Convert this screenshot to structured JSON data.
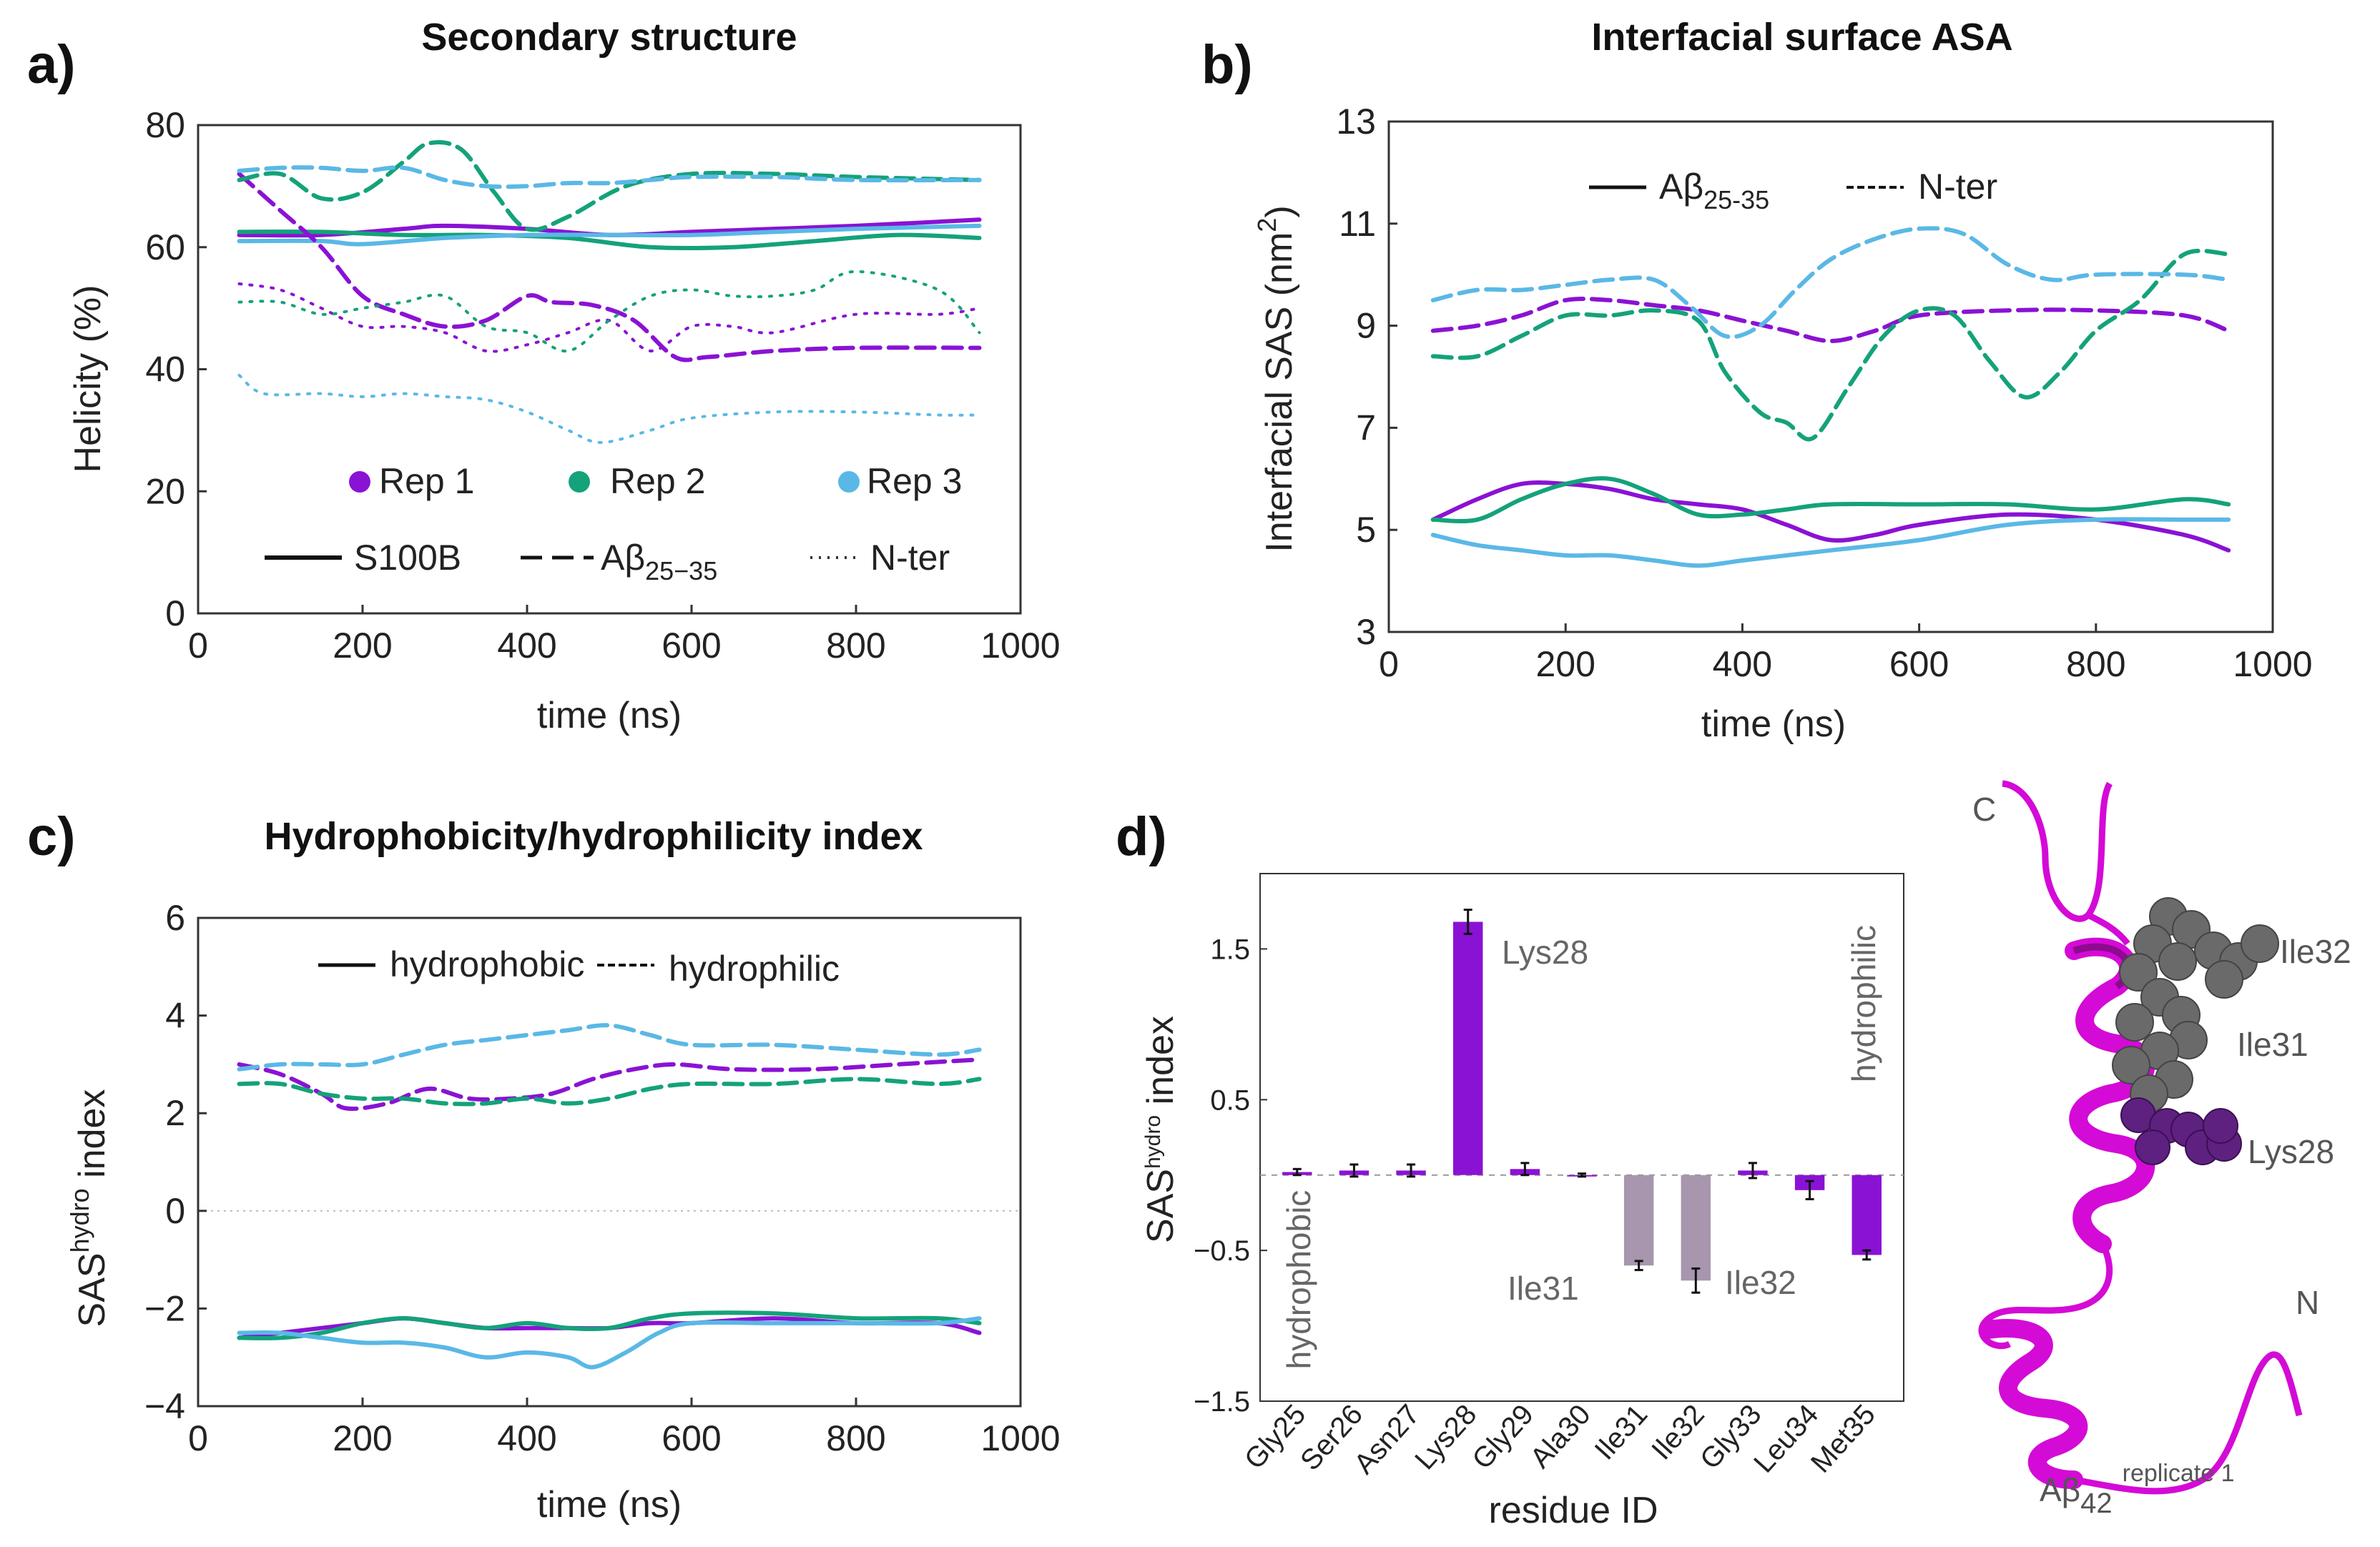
{
  "colors": {
    "rep1": "#8a12d4",
    "rep2": "#14a27a",
    "rep3": "#5ab8e6",
    "grey_bar": "#a796ad",
    "ribbon": "#d40ad6",
    "sphere_grey": "#6a6a6a",
    "sphere_purple": "#5e2180",
    "lys_text": "#8a2fb5"
  },
  "panels": [
    {
      "label": "a)",
      "title": "Secondary structure"
    },
    {
      "label": "b)",
      "title": "Interfacial surface ASA"
    },
    {
      "label": "c)",
      "title": "Hydrophobicity/hydrophilicity index"
    },
    {
      "label": "d)",
      "title": ""
    }
  ],
  "chart_data": [
    {
      "id": "a",
      "type": "line",
      "title": "Secondary structure",
      "xlabel": "time (ns)",
      "ylabel": "Helicity (%)",
      "xlim": [
        0,
        1000
      ],
      "ylim": [
        0,
        80
      ],
      "xticks": [
        0,
        200,
        400,
        600,
        800,
        1000
      ],
      "yticks": [
        0,
        20,
        40,
        60,
        80
      ],
      "legend": {
        "replicates": [
          {
            "name": "Rep 1",
            "color": "rep1"
          },
          {
            "name": "Rep 2",
            "color": "rep2"
          },
          {
            "name": "Rep 3",
            "color": "rep3"
          }
        ],
        "styles": [
          {
            "name": "S100B",
            "style": "solid"
          },
          {
            "name": "Aβ",
            "sub": "25−35",
            "style": "dashed"
          },
          {
            "name": "N-ter",
            "style": "dotted"
          }
        ]
      },
      "series": [
        {
          "name": "Rep 1 S100B",
          "rep": "rep1",
          "style": "solid",
          "x": [
            50,
            150,
            250,
            300,
            400,
            500,
            600,
            700,
            800,
            950
          ],
          "y": [
            62,
            62,
            63,
            63.5,
            63,
            62,
            62.5,
            63,
            63.5,
            64.5
          ]
        },
        {
          "name": "Rep 2 S100B",
          "rep": "rep2",
          "style": "solid",
          "x": [
            50,
            150,
            250,
            350,
            450,
            550,
            650,
            750,
            850,
            950
          ],
          "y": [
            62.5,
            62.5,
            62,
            62,
            61.5,
            60,
            60,
            61,
            62,
            61.5
          ]
        },
        {
          "name": "Rep 3 S100B",
          "rep": "rep3",
          "style": "solid",
          "x": [
            50,
            150,
            200,
            300,
            400,
            500,
            600,
            700,
            800,
            950
          ],
          "y": [
            61,
            61,
            60.5,
            61.5,
            62,
            62,
            62,
            62.5,
            63,
            63.5
          ]
        },
        {
          "name": "Rep 1 Aβ25-35",
          "rep": "rep1",
          "style": "dashed",
          "x": [
            50,
            100,
            150,
            200,
            250,
            300,
            350,
            400,
            430,
            480,
            530,
            580,
            620,
            700,
            800,
            950
          ],
          "y": [
            72,
            66,
            60,
            52,
            49,
            47,
            48,
            52,
            51,
            50.5,
            48,
            42,
            42,
            43,
            43.5,
            43.5
          ]
        },
        {
          "name": "Rep 2 Aβ25-35",
          "rep": "rep2",
          "style": "dashed",
          "x": [
            50,
            100,
            150,
            200,
            250,
            280,
            320,
            360,
            400,
            450,
            520,
            600,
            700,
            800,
            950
          ],
          "y": [
            71,
            72,
            68,
            69,
            74,
            77,
            76,
            69,
            63,
            65,
            70,
            72,
            72,
            71.5,
            71
          ]
        },
        {
          "name": "Rep 3 Aβ25-35",
          "rep": "rep3",
          "style": "dashed",
          "x": [
            50,
            100,
            150,
            200,
            250,
            300,
            350,
            400,
            450,
            500,
            550,
            600,
            700,
            800,
            950
          ],
          "y": [
            72.5,
            73,
            73,
            72.5,
            73,
            71,
            70,
            70,
            70.5,
            70.5,
            71,
            71.5,
            71.5,
            71,
            71
          ]
        },
        {
          "name": "Rep 1 N-ter",
          "rep": "rep1",
          "style": "dotted",
          "x": [
            50,
            100,
            150,
            200,
            250,
            300,
            350,
            400,
            450,
            500,
            550,
            600,
            650,
            700,
            800,
            900,
            950
          ],
          "y": [
            54,
            53,
            50,
            47,
            47,
            46,
            43,
            44,
            46,
            48,
            43,
            47,
            47,
            46,
            49,
            49,
            50
          ]
        },
        {
          "name": "Rep 2 N-ter",
          "rep": "rep2",
          "style": "dotted",
          "x": [
            50,
            100,
            150,
            200,
            250,
            300,
            350,
            400,
            450,
            500,
            550,
            600,
            650,
            700,
            750,
            800,
            900,
            950
          ],
          "y": [
            51,
            51,
            49,
            50,
            51,
            52,
            47,
            46,
            43,
            48,
            52,
            53,
            52,
            52,
            53,
            56,
            53,
            46
          ]
        },
        {
          "name": "Rep 3 N-ter",
          "rep": "rep3",
          "style": "dotted",
          "x": [
            50,
            80,
            150,
            200,
            250,
            300,
            350,
            400,
            450,
            490,
            550,
            600,
            700,
            800,
            900,
            950
          ],
          "y": [
            39,
            36,
            36,
            35.5,
            36,
            35.5,
            35,
            33,
            30,
            28,
            30,
            32,
            33,
            33,
            32.5,
            32.5
          ]
        }
      ]
    },
    {
      "id": "b",
      "type": "line",
      "title": "Interfacial surface ASA",
      "xlabel": "time (ns)",
      "ylabel": "Interfacial SAS (nm",
      "ylabel_sup": "2",
      "ylabel_end": ")",
      "xlim": [
        0,
        1000
      ],
      "ylim": [
        3,
        13
      ],
      "xticks": [
        0,
        200,
        400,
        600,
        800,
        1000
      ],
      "yticks": [
        3,
        5,
        7,
        9,
        11,
        13
      ],
      "legend": {
        "styles": [
          {
            "name": "Aβ",
            "sub": "25-35",
            "style": "solid"
          },
          {
            "name": "N-ter",
            "style": "dashed"
          }
        ]
      },
      "series": [
        {
          "name": "Rep 1 Aβ25-35",
          "rep": "rep1",
          "style": "solid",
          "x": [
            50,
            100,
            150,
            200,
            250,
            300,
            350,
            400,
            450,
            500,
            550,
            600,
            700,
            800,
            900,
            950
          ],
          "y": [
            5.2,
            5.6,
            5.9,
            5.9,
            5.8,
            5.6,
            5.5,
            5.4,
            5.1,
            4.8,
            4.9,
            5.1,
            5.3,
            5.2,
            4.9,
            4.6
          ]
        },
        {
          "name": "Rep 2 Aβ25-35",
          "rep": "rep2",
          "style": "solid",
          "x": [
            50,
            100,
            150,
            200,
            250,
            300,
            350,
            400,
            450,
            500,
            600,
            700,
            800,
            900,
            950
          ],
          "y": [
            5.2,
            5.2,
            5.6,
            5.9,
            6.0,
            5.7,
            5.3,
            5.3,
            5.4,
            5.5,
            5.5,
            5.5,
            5.4,
            5.6,
            5.5
          ]
        },
        {
          "name": "Rep 3 Aβ25-35",
          "rep": "rep3",
          "style": "solid",
          "x": [
            50,
            100,
            150,
            200,
            250,
            300,
            350,
            400,
            450,
            500,
            600,
            700,
            800,
            900,
            950
          ],
          "y": [
            4.9,
            4.7,
            4.6,
            4.5,
            4.5,
            4.4,
            4.3,
            4.4,
            4.5,
            4.6,
            4.8,
            5.1,
            5.2,
            5.2,
            5.2
          ]
        },
        {
          "name": "Rep 1 N-ter",
          "rep": "rep1",
          "style": "dashed",
          "x": [
            50,
            100,
            150,
            200,
            250,
            300,
            350,
            400,
            450,
            500,
            550,
            600,
            700,
            800,
            900,
            950
          ],
          "y": [
            8.9,
            9.0,
            9.2,
            9.5,
            9.5,
            9.4,
            9.3,
            9.1,
            8.9,
            8.7,
            8.9,
            9.2,
            9.3,
            9.3,
            9.2,
            8.9
          ]
        },
        {
          "name": "Rep 2 N-ter",
          "rep": "rep2",
          "style": "dashed",
          "x": [
            50,
            100,
            150,
            200,
            250,
            300,
            350,
            380,
            420,
            450,
            480,
            520,
            560,
            600,
            640,
            680,
            720,
            760,
            800,
            850,
            900,
            950
          ],
          "y": [
            8.4,
            8.4,
            8.8,
            9.2,
            9.2,
            9.3,
            9.1,
            8.1,
            7.3,
            7.1,
            6.8,
            7.8,
            8.8,
            9.3,
            9.2,
            8.3,
            7.6,
            8.1,
            8.9,
            9.5,
            10.4,
            10.4
          ]
        },
        {
          "name": "Rep 3 N-ter",
          "rep": "rep3",
          "style": "dashed",
          "x": [
            50,
            100,
            150,
            200,
            250,
            300,
            340,
            380,
            420,
            460,
            500,
            550,
            600,
            650,
            700,
            750,
            800,
            900,
            950
          ],
          "y": [
            9.5,
            9.7,
            9.7,
            9.8,
            9.9,
            9.9,
            9.4,
            8.8,
            9.0,
            9.7,
            10.3,
            10.7,
            10.9,
            10.8,
            10.2,
            9.9,
            10.0,
            10.0,
            9.9
          ]
        }
      ]
    },
    {
      "id": "c",
      "type": "line",
      "title": "Hydrophobicity/hydrophilicity index",
      "xlabel": "time (ns)",
      "ylabel": "SAS",
      "ylabel_sup": "hydro",
      "ylabel_end": " index",
      "xlim": [
        0,
        1000
      ],
      "ylim": [
        -4,
        6
      ],
      "xticks": [
        0,
        200,
        400,
        600,
        800,
        1000
      ],
      "yticks": [
        -4,
        -2,
        0,
        2,
        4,
        6
      ],
      "legend": {
        "styles": [
          {
            "name": "hydrophobic",
            "style": "solid"
          },
          {
            "name": "hydrophilic",
            "style": "dashed"
          }
        ]
      },
      "series": [
        {
          "name": "Rep 1 hydrophilic",
          "rep": "rep1",
          "style": "dashed",
          "x": [
            50,
            100,
            150,
            180,
            230,
            280,
            330,
            380,
            430,
            480,
            530,
            580,
            650,
            750,
            850,
            950
          ],
          "y": [
            3.0,
            2.8,
            2.4,
            2.1,
            2.2,
            2.5,
            2.3,
            2.3,
            2.4,
            2.7,
            2.9,
            3.0,
            2.9,
            2.9,
            3.0,
            3.1
          ]
        },
        {
          "name": "Rep 2 hydrophilic",
          "rep": "rep2",
          "style": "dashed",
          "x": [
            50,
            100,
            150,
            200,
            250,
            300,
            350,
            400,
            450,
            500,
            550,
            600,
            700,
            800,
            900,
            950
          ],
          "y": [
            2.6,
            2.6,
            2.4,
            2.3,
            2.3,
            2.2,
            2.2,
            2.3,
            2.2,
            2.3,
            2.5,
            2.6,
            2.6,
            2.7,
            2.6,
            2.7
          ]
        },
        {
          "name": "Rep 3 hydrophilic",
          "rep": "rep3",
          "style": "dashed",
          "x": [
            50,
            100,
            150,
            200,
            250,
            300,
            350,
            400,
            450,
            500,
            550,
            600,
            700,
            800,
            900,
            950
          ],
          "y": [
            2.9,
            3.0,
            3.0,
            3.0,
            3.2,
            3.4,
            3.5,
            3.6,
            3.7,
            3.8,
            3.6,
            3.4,
            3.4,
            3.3,
            3.2,
            3.3
          ]
        },
        {
          "name": "Rep 1 hydrophobic",
          "rep": "rep1",
          "style": "solid",
          "x": [
            50,
            100,
            150,
            200,
            250,
            300,
            350,
            400,
            450,
            500,
            550,
            600,
            700,
            800,
            900,
            950
          ],
          "y": [
            -2.6,
            -2.5,
            -2.4,
            -2.3,
            -2.2,
            -2.3,
            -2.4,
            -2.4,
            -2.4,
            -2.4,
            -2.3,
            -2.3,
            -2.2,
            -2.3,
            -2.3,
            -2.5
          ]
        },
        {
          "name": "Rep 2 hydrophobic",
          "rep": "rep2",
          "style": "solid",
          "x": [
            50,
            100,
            150,
            200,
            250,
            300,
            350,
            400,
            450,
            500,
            550,
            600,
            700,
            800,
            900,
            950
          ],
          "y": [
            -2.6,
            -2.6,
            -2.5,
            -2.3,
            -2.2,
            -2.3,
            -2.4,
            -2.3,
            -2.4,
            -2.4,
            -2.2,
            -2.1,
            -2.1,
            -2.2,
            -2.2,
            -2.3
          ]
        },
        {
          "name": "Rep 3 hydrophobic",
          "rep": "rep3",
          "style": "solid",
          "x": [
            50,
            100,
            150,
            200,
            250,
            300,
            350,
            400,
            450,
            480,
            520,
            560,
            600,
            700,
            800,
            900,
            950
          ],
          "y": [
            -2.5,
            -2.5,
            -2.6,
            -2.7,
            -2.7,
            -2.8,
            -3.0,
            -2.9,
            -3.0,
            -3.2,
            -2.9,
            -2.5,
            -2.3,
            -2.3,
            -2.3,
            -2.3,
            -2.2
          ]
        }
      ]
    },
    {
      "id": "d",
      "type": "bar",
      "xlabel": "residue ID",
      "ylabel": "SAS",
      "ylabel_sup": "hydro",
      "ylabel_end": " index",
      "ylim": [
        -1.5,
        2
      ],
      "yticks": [
        -1.5,
        -0.5,
        0.5,
        1.5
      ],
      "categories": [
        "Gly25",
        "Ser26",
        "Asn27",
        "Lys28",
        "Gly29",
        "Ala30",
        "Ile31",
        "Ile32",
        "Gly33",
        "Leu34",
        "Met35"
      ],
      "values": [
        0.02,
        0.03,
        0.03,
        1.68,
        0.04,
        0.0,
        -0.6,
        -0.7,
        0.03,
        -0.1,
        -0.53
      ],
      "errors": [
        0.02,
        0.04,
        0.04,
        0.08,
        0.04,
        0.01,
        0.03,
        0.08,
        0.05,
        0.06,
        0.03
      ],
      "bar_colors": [
        "rep1",
        "rep1",
        "rep1",
        "rep1",
        "rep1",
        "rep1",
        "grey_bar",
        "grey_bar",
        "rep1",
        "rep1",
        "rep1"
      ],
      "annotations": {
        "lys28": "Lys28",
        "ile31": "Ile31",
        "ile32": "Ile32",
        "hydrophilic": "hydrophilic",
        "hydrophobic": "hydrophobic"
      }
    }
  ],
  "molecule": {
    "terminus_c": "C",
    "terminus_n": "N",
    "residues": [
      "Ile32",
      "Ile31",
      "Lys28"
    ],
    "caption": "Aβ",
    "caption_sub": "42",
    "caption_sup": "replicate 1"
  }
}
